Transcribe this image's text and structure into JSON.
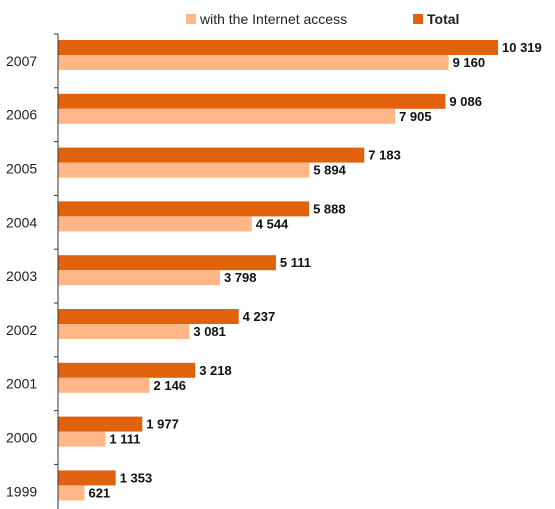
{
  "chart_data": {
    "type": "bar",
    "orientation": "horizontal",
    "categories": [
      "2007",
      "2006",
      "2005",
      "2004",
      "2003",
      "2002",
      "2001",
      "2000",
      "1999"
    ],
    "series": [
      {
        "name": "Total",
        "color": "#E0620D",
        "values": [
          10319,
          9086,
          7183,
          5888,
          5111,
          4237,
          3218,
          1977,
          1353
        ],
        "labels": [
          "10 319",
          "9 086",
          "7 183",
          "5 888",
          "5 111",
          "4 237",
          "3 218",
          "1 977",
          "1 353"
        ]
      },
      {
        "name": "with the Internet access",
        "color": "#FFB787",
        "values": [
          9160,
          7905,
          5894,
          4544,
          3798,
          3081,
          2146,
          1111,
          621
        ],
        "labels": [
          "9 160",
          "7 905",
          "5 894",
          "4 544",
          "3 798",
          "3 081",
          "2 146",
          "1 111",
          "621"
        ]
      }
    ],
    "xlim": [
      0,
      10319
    ],
    "legend": {
      "position": "top",
      "order": [
        "with the Internet access",
        "Total"
      ]
    },
    "grid": false
  }
}
